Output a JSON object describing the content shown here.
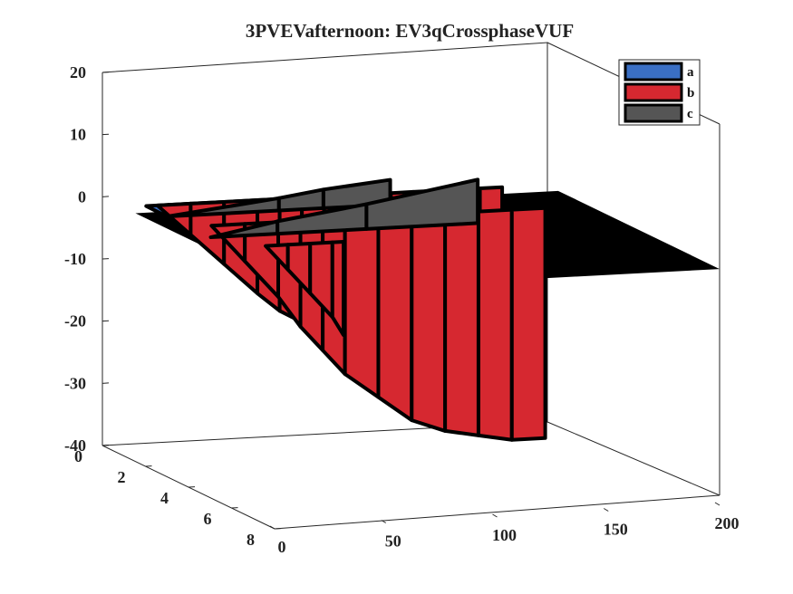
{
  "chart_data": {
    "type": "3d-surface",
    "title": "3PVEVafternoon: EV3qCrossphaseVUF",
    "xlabel": "",
    "ylabel": "",
    "zlabel": "",
    "xlim": [
      0,
      200
    ],
    "ylim": [
      0,
      8
    ],
    "zlim": [
      -40,
      20
    ],
    "x_ticks": [
      "0",
      "50",
      "100",
      "150",
      "200"
    ],
    "y_ticks": [
      "0",
      "2",
      "4",
      "6",
      "8"
    ],
    "z_ticks": [
      "20",
      "10",
      "0",
      "-10",
      "-20",
      "-30",
      "-40"
    ],
    "grid": false,
    "legend_position": "top-right",
    "series": [
      {
        "name": "a",
        "color": "#3a6fc4",
        "profiles": [
          {
            "y": 1,
            "points": [
              [
                10,
                0
              ],
              [
                20,
                -2
              ],
              [
                30,
                -4
              ],
              [
                45,
                -6
              ],
              [
                60,
                -8
              ],
              [
                75,
                -10
              ],
              [
                85,
                -8
              ],
              [
                95,
                -2
              ],
              [
                100,
                0
              ]
            ]
          },
          {
            "y": 3,
            "points": [
              [
                10,
                0
              ],
              [
                25,
                -3
              ],
              [
                40,
                -6
              ],
              [
                55,
                -9
              ],
              [
                70,
                -12
              ],
              [
                80,
                -10
              ],
              [
                90,
                -6
              ]
            ]
          },
          {
            "y": 5,
            "points": [
              [
                10,
                0
              ],
              [
                25,
                -2
              ],
              [
                40,
                -5
              ],
              [
                55,
                -8
              ],
              [
                70,
                -11
              ],
              [
                80,
                -8
              ]
            ]
          }
        ]
      },
      {
        "name": "b",
        "color": "#d62830",
        "profiles": [
          {
            "y": 1,
            "points": [
              [
                15,
                0
              ],
              [
                30,
                -5
              ],
              [
                45,
                -10
              ],
              [
                60,
                -15
              ],
              [
                70,
                -18
              ],
              [
                80,
                -20
              ],
              [
                90,
                -22
              ],
              [
                100,
                -23
              ],
              [
                110,
                -25
              ],
              [
                120,
                -26
              ],
              [
                130,
                -28
              ],
              [
                140,
                -31
              ],
              [
                150,
                -32
              ],
              [
                160,
                -33
              ],
              [
                170,
                -33
              ]
            ]
          },
          {
            "y": 3,
            "points": [
              [
                20,
                0
              ],
              [
                35,
                -6
              ],
              [
                50,
                -12
              ],
              [
                60,
                -17
              ],
              [
                70,
                -21
              ],
              [
                80,
                -25
              ],
              [
                95,
                -29
              ],
              [
                110,
                -33
              ],
              [
                125,
                -35
              ],
              [
                140,
                -36
              ],
              [
                155,
                -37
              ],
              [
                170,
                -37
              ]
            ]
          },
          {
            "y": 5,
            "points": [
              [
                25,
                0
              ],
              [
                35,
                -4
              ],
              [
                45,
                -8
              ],
              [
                55,
                -12
              ],
              [
                60,
                -15
              ]
            ]
          }
        ]
      },
      {
        "name": "c",
        "color": "#555555",
        "profiles": [
          {
            "y": 2,
            "points": [
              [
                10,
                0
              ],
              [
                60,
                2
              ],
              [
                80,
                3
              ],
              [
                110,
                4
              ]
            ]
          },
          {
            "y": 4,
            "points": [
              [
                10,
                0
              ],
              [
                40,
                2
              ],
              [
                80,
                4
              ],
              [
                130,
                7
              ]
            ]
          }
        ]
      }
    ]
  }
}
